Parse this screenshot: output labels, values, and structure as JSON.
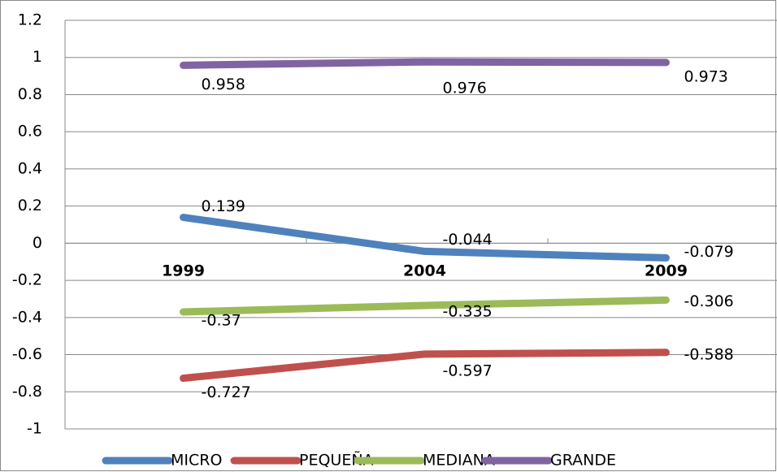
{
  "chart_data": {
    "type": "line",
    "categories": [
      "1999",
      "2004",
      "2009"
    ],
    "series": [
      {
        "name": "MICRO",
        "color": "#4f81bd",
        "values": [
          0.139,
          -0.044,
          -0.079
        ]
      },
      {
        "name": "PEQUEÑA",
        "color": "#c0504d",
        "values": [
          -0.727,
          -0.597,
          -0.588
        ]
      },
      {
        "name": "MEDIANA",
        "color": "#9bbb59",
        "values": [
          -0.37,
          -0.335,
          -0.306
        ]
      },
      {
        "name": "GRANDE",
        "color": "#8064a2",
        "values": [
          0.958,
          0.976,
          0.973
        ]
      }
    ],
    "ylim": [
      -1,
      1.2
    ],
    "yticks": [
      -1,
      -0.8,
      -0.6,
      -0.4,
      -0.2,
      0,
      0.2,
      0.4,
      0.6,
      0.8,
      1,
      1.2
    ],
    "grid": true,
    "legend": "bottom"
  }
}
